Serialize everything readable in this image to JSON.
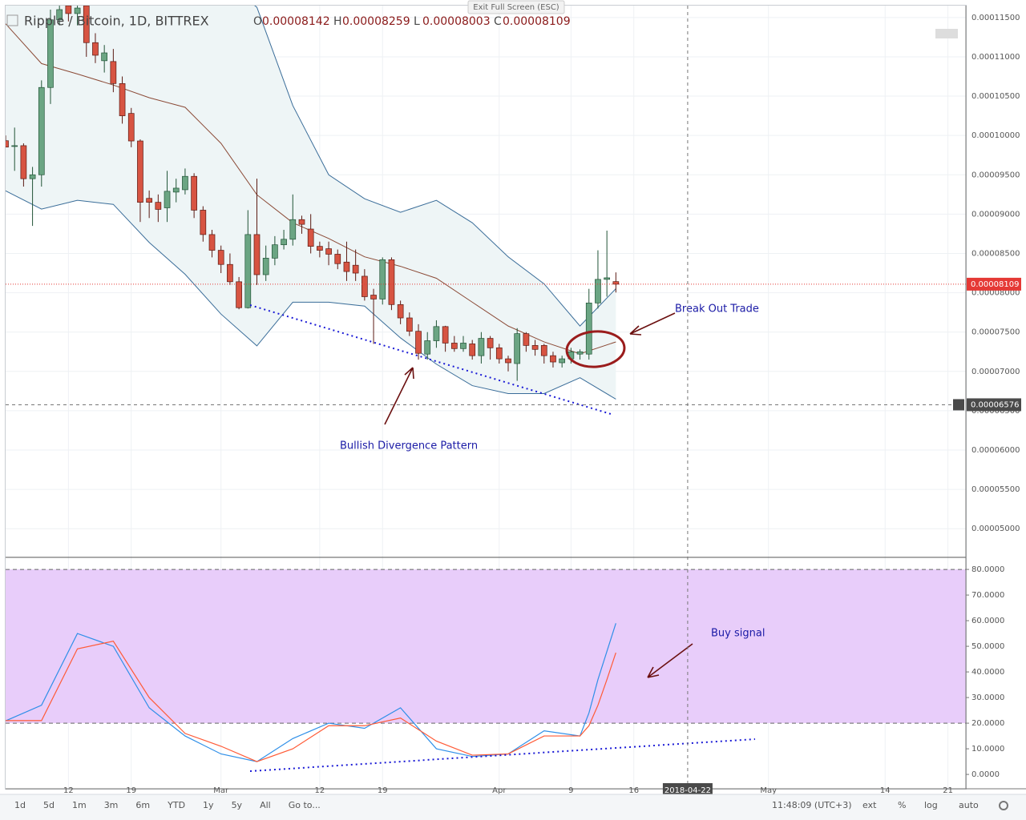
{
  "chart_data": [
    {
      "type": "candlestick",
      "title": "Ripple / Bitcoin, 1D, BITTREX",
      "ohlc_legend": [
        "O",
        "H",
        "L",
        "C"
      ],
      "exit_label": "Exit Full Screen (ESC)",
      "xlim": [
        "2018-02-05",
        "2018-05-23"
      ],
      "x": [
        "2018-02-05",
        "2018-02-06",
        "2018-02-07",
        "2018-02-08",
        "2018-02-09",
        "2018-02-10",
        "2018-02-11",
        "2018-02-12",
        "2018-02-13",
        "2018-02-14",
        "2018-02-15",
        "2018-02-16",
        "2018-02-17",
        "2018-02-18",
        "2018-02-19",
        "2018-02-20",
        "2018-02-21",
        "2018-02-22",
        "2018-02-23",
        "2018-02-24",
        "2018-02-25",
        "2018-02-26",
        "2018-02-27",
        "2018-02-28",
        "2018-03-01",
        "2018-03-02",
        "2018-03-03",
        "2018-03-04",
        "2018-03-05",
        "2018-03-06",
        "2018-03-07",
        "2018-03-08",
        "2018-03-09",
        "2018-03-10",
        "2018-03-11",
        "2018-03-12",
        "2018-03-13",
        "2018-03-14",
        "2018-03-15",
        "2018-03-16",
        "2018-03-17",
        "2018-03-18",
        "2018-03-19",
        "2018-03-20",
        "2018-03-21",
        "2018-03-22",
        "2018-03-23",
        "2018-03-24",
        "2018-03-25",
        "2018-03-26",
        "2018-03-27",
        "2018-03-28",
        "2018-03-29",
        "2018-03-30",
        "2018-03-31",
        "2018-04-01",
        "2018-04-02",
        "2018-04-03",
        "2018-04-04",
        "2018-04-05",
        "2018-04-06",
        "2018-04-07",
        "2018-04-08",
        "2018-04-09",
        "2018-04-10",
        "2018-04-11",
        "2018-04-12",
        "2018-04-13",
        "2018-04-14"
      ],
      "open": [
        9.933e-05,
        9.86e-05,
        9.87e-05,
        9.45e-05,
        9.5e-05,
        0.0001061,
        0.0001147,
        0.0001165,
        0.0001155,
        0.0001165,
        0.0001118,
        0.0001095,
        0.0001094,
        0.0001066,
        0.0001028,
        9.93e-05,
        9.2e-05,
        9.15e-05,
        9.08e-05,
        9.28e-05,
        9.31e-05,
        9.48e-05,
        9.05e-05,
        8.74e-05,
        8.54e-05,
        8.36e-05,
        8.14e-05,
        7.81e-05,
        8.74e-05,
        8.23e-05,
        8.44e-05,
        8.61e-05,
        8.68e-05,
        8.93e-05,
        8.81e-05,
        8.59e-05,
        8.56e-05,
        8.49e-05,
        8.39e-05,
        8.35e-05,
        8.21e-05,
        7.97e-05,
        7.92e-05,
        8.42e-05,
        7.85e-05,
        7.68e-05,
        7.51e-05,
        7.22e-05,
        7.39e-05,
        7.57e-05,
        7.36e-05,
        7.29e-05,
        7.35e-05,
        7.2e-05,
        7.42e-05,
        7.3e-05,
        7.16e-05,
        7.1e-05,
        7.48e-05,
        7.33e-05,
        7.33e-05,
        7.2e-05,
        7.11e-05,
        7.16e-05,
        7.22e-05,
        7.22e-05,
        7.87e-05,
        8.17e-05,
        8.142e-05
      ],
      "high": [
        0.0001,
        0.000101,
        9.9e-05,
        9.6e-05,
        0.000107,
        0.000116,
        0.0001165,
        0.0001165,
        0.0001165,
        0.0001165,
        0.000113,
        0.0001115,
        0.000111,
        0.0001075,
        0.0001035,
        9.95e-05,
        9.3e-05,
        9.25e-05,
        9.55e-05,
        9.45e-05,
        9.58e-05,
        9.52e-05,
        9.1e-05,
        8.8e-05,
        8.6e-05,
        8.5e-05,
        8.2e-05,
        9.05e-05,
        9.45e-05,
        8.6e-05,
        8.72e-05,
        8.8e-05,
        9.25e-05,
        8.98e-05,
        9e-05,
        8.65e-05,
        8.65e-05,
        8.55e-05,
        8.65e-05,
        8.55e-05,
        8.3e-05,
        8.05e-05,
        8.45e-05,
        8.45e-05,
        7.9e-05,
        7.75e-05,
        7.6e-05,
        7.5e-05,
        7.65e-05,
        7.58e-05,
        7.45e-05,
        7.45e-05,
        7.4e-05,
        7.5e-05,
        7.45e-05,
        7.35e-05,
        7.2e-05,
        7.55e-05,
        7.5e-05,
        7.4e-05,
        7.35e-05,
        7.25e-05,
        7.2e-05,
        7.3e-05,
        7.28e-05,
        8.05e-05,
        8.54e-05,
        8.79e-05,
        8.259e-05
      ],
      "low": [
        9.85e-05,
        9.55e-05,
        9.35e-05,
        8.85e-05,
        9.35e-05,
        0.000104,
        0.000114,
        0.0001145,
        0.000114,
        0.00011,
        0.0001092,
        0.000108,
        0.0001055,
        0.0001015,
        9.85e-05,
        8.9e-05,
        8.95e-05,
        8.9e-05,
        8.9e-05,
        9.15e-05,
        9.25e-05,
        8.95e-05,
        8.65e-05,
        8.45e-05,
        8.25e-05,
        8.1e-05,
        7.79e-05,
        7.8e-05,
        8.1e-05,
        8.15e-05,
        8.35e-05,
        8.55e-05,
        8.6e-05,
        8.75e-05,
        8.5e-05,
        8.45e-05,
        8.35e-05,
        8.3e-05,
        8.15e-05,
        8.15e-05,
        7.9e-05,
        7.35e-05,
        7.85e-05,
        7.78e-05,
        7.6e-05,
        7.45e-05,
        7.15e-05,
        7.15e-05,
        7.3e-05,
        7.25e-05,
        7.25e-05,
        7.25e-05,
        7.15e-05,
        7.1e-05,
        7.15e-05,
        7.1e-05,
        7e-05,
        6.88e-05,
        7.25e-05,
        7.2e-05,
        7.1e-05,
        7.05e-05,
        7.05e-05,
        7.1e-05,
        7.15e-05,
        7.15e-05,
        7.8e-05,
        7.95e-05,
        8.003e-05
      ],
      "close": [
        9.852e-05,
        9.87e-05,
        9.45e-05,
        9.5e-05,
        0.0001061,
        0.0001147,
        0.000116,
        0.0001155,
        0.0001162,
        0.0001118,
        0.0001102,
        0.0001105,
        0.0001066,
        0.0001025,
        9.93e-05,
        9.15e-05,
        9.15e-05,
        9.06e-05,
        9.29e-05,
        9.33e-05,
        9.48e-05,
        9.05e-05,
        8.74e-05,
        8.54e-05,
        8.36e-05,
        8.14e-05,
        7.81e-05,
        8.74e-05,
        8.23e-05,
        8.44e-05,
        8.61e-05,
        8.68e-05,
        8.93e-05,
        8.87e-05,
        8.59e-05,
        8.54e-05,
        8.49e-05,
        8.37e-05,
        8.27e-05,
        8.25e-05,
        7.95e-05,
        7.92e-05,
        8.42e-05,
        7.85e-05,
        7.68e-05,
        7.51e-05,
        7.23e-05,
        7.39e-05,
        7.57e-05,
        7.36e-05,
        7.29e-05,
        7.36e-05,
        7.2e-05,
        7.42e-05,
        7.3e-05,
        7.16e-05,
        7.11e-05,
        7.48e-05,
        7.33e-05,
        7.28e-05,
        7.2e-05,
        7.12e-05,
        7.16e-05,
        7.25e-05,
        7.25e-05,
        7.87e-05,
        8.17e-05,
        8.19e-05,
        8.109e-05
      ],
      "up_color": "#6ba583",
      "down_color": "#d75442",
      "bands": {
        "x": [
          "2018-02-05",
          "2018-02-09",
          "2018-02-13",
          "2018-02-17",
          "2018-02-21",
          "2018-02-25",
          "2018-03-01",
          "2018-03-05",
          "2018-03-09",
          "2018-03-13",
          "2018-03-17",
          "2018-03-21",
          "2018-03-25",
          "2018-03-29",
          "2018-04-02",
          "2018-04-06",
          "2018-04-10",
          "2018-04-14"
        ],
        "upper": [
          0.000118,
          0.000125,
          0.00013,
          0.000131,
          0.000128,
          0.000124,
          0.00012,
          0.0001163,
          0.0001038,
          9.5e-05,
          9.195e-05,
          9.023e-05,
          9.175e-05,
          8.89e-05,
          8.457e-05,
          8.113e-05,
          7.577e-05,
          8.052e-05
        ],
        "middle": [
          0.0001142,
          0.00010914,
          0.00010782,
          0.00010641,
          0.0001048,
          0.00010358,
          9.9e-05,
          9.246e-05,
          8.89e-05,
          8.69e-05,
          8.457e-05,
          8.336e-05,
          8.184e-05,
          7.88e-05,
          7.577e-05,
          7.375e-05,
          7.224e-05,
          7.375e-05
        ],
        "lower": [
          9.296e-05,
          9.064e-05,
          9.175e-05,
          9.124e-05,
          8.64e-05,
          8.235e-05,
          7.729e-05,
          7.325e-05,
          7.88e-05,
          7.88e-05,
          7.83e-05,
          7.426e-05,
          7.092e-05,
          6.819e-05,
          6.718e-05,
          6.718e-05,
          6.92e-05,
          6.647e-05
        ],
        "line_color": "#3a6d99",
        "middle_color": "#8b4a36",
        "fill": "#eef5f6"
      },
      "ylim": [
        4.646e-05,
        0.00011651
      ],
      "yticks": [
        {
          "value": 5e-05,
          "label": "0.00005000"
        },
        {
          "value": 5.5e-05,
          "label": "0.00005500"
        },
        {
          "value": 6e-05,
          "label": "0.00006000"
        },
        {
          "value": 6.5e-05,
          "label": "0.00006500"
        },
        {
          "value": 7e-05,
          "label": "0.00007000"
        },
        {
          "value": 7.5e-05,
          "label": "0.00007500"
        },
        {
          "value": 8e-05,
          "label": "0.00008000"
        },
        {
          "value": 8.5e-05,
          "label": "0.00008500"
        },
        {
          "value": 9e-05,
          "label": "0.00009000"
        },
        {
          "value": 9.5e-05,
          "label": "0.00009500"
        },
        {
          "value": 0.0001,
          "label": "0.00010000"
        },
        {
          "value": 0.000105,
          "label": "0.00010500"
        },
        {
          "value": 0.00011,
          "label": "0.00011000"
        },
        {
          "value": 0.000115,
          "label": "0.00011500"
        }
      ],
      "grid": true,
      "last_price_color": "#e53935",
      "crosshair": {
        "y": 6.576e-05
      },
      "annotations": [
        "Break Out Trade",
        "Bullish Divergence Pattern"
      ]
    },
    {
      "type": "line",
      "xlim": [
        "2018-02-05",
        "2018-05-23"
      ],
      "x": [
        "2018-02-05",
        "2018-02-09",
        "2018-02-13",
        "2018-02-17",
        "2018-02-21",
        "2018-02-25",
        "2018-03-01",
        "2018-03-05",
        "2018-03-09",
        "2018-03-13",
        "2018-03-17",
        "2018-03-21",
        "2018-03-25",
        "2018-03-29",
        "2018-04-02",
        "2018-04-06",
        "2018-04-10",
        "2018-04-11",
        "2018-04-12",
        "2018-04-13",
        "2018-04-14"
      ],
      "series": [
        {
          "color": "#2f8fe8",
          "values": [
            20.9,
            27,
            55,
            50,
            26,
            15,
            8,
            5,
            14,
            20,
            18,
            26,
            10,
            7,
            8,
            17,
            15,
            24,
            37,
            48,
            59
          ]
        },
        {
          "color": "#ff5a36",
          "values": [
            21,
            21,
            49,
            52,
            30,
            16,
            11,
            5,
            10,
            19,
            19,
            22,
            13,
            7.5,
            8,
            15,
            15,
            19,
            27,
            37,
            47.5
          ]
        }
      ],
      "ylim": [
        -5.6,
        84.4
      ],
      "yticks": [
        {
          "value": 0,
          "label": "0.0000"
        },
        {
          "value": 10,
          "label": "10.0000"
        },
        {
          "value": 20,
          "label": "20.0000"
        },
        {
          "value": 30,
          "label": "30.0000"
        },
        {
          "value": 40,
          "label": "40.0000"
        },
        {
          "value": 50,
          "label": "50.0000"
        },
        {
          "value": 60,
          "label": "60.0000"
        },
        {
          "value": 70,
          "label": "70.0000"
        },
        {
          "value": 80,
          "label": "80.0000"
        }
      ],
      "band": [
        20,
        80
      ],
      "band_fill": "#e8cdfa",
      "xticks": [
        {
          "value": "2018-02-12",
          "label": "12"
        },
        {
          "value": "2018-02-19",
          "label": "19"
        },
        {
          "value": "2018-03-01",
          "label": "Mar"
        },
        {
          "value": "2018-03-12",
          "label": "12"
        },
        {
          "value": "2018-03-19",
          "label": "19"
        },
        {
          "value": "2018-04-01",
          "label": "Apr"
        },
        {
          "value": "2018-04-09",
          "label": "9"
        },
        {
          "value": "2018-04-16",
          "label": "16"
        },
        {
          "value": "2018-05-01",
          "label": "May"
        },
        {
          "value": "2018-05-14",
          "label": "14"
        },
        {
          "value": "2018-05-21",
          "label": "21"
        }
      ],
      "crosshair": {
        "x": "2018-04-22"
      },
      "annotations": [
        "Buy signal"
      ]
    }
  ],
  "toolbar": {
    "ranges": [
      "1d",
      "5d",
      "1m",
      "3m",
      "6m",
      "YTD",
      "1y",
      "5y",
      "All"
    ],
    "goto": "Go to...",
    "time": "11:48:09 (UTC+3)",
    "options": [
      "ext",
      "%",
      "log",
      "auto"
    ]
  }
}
